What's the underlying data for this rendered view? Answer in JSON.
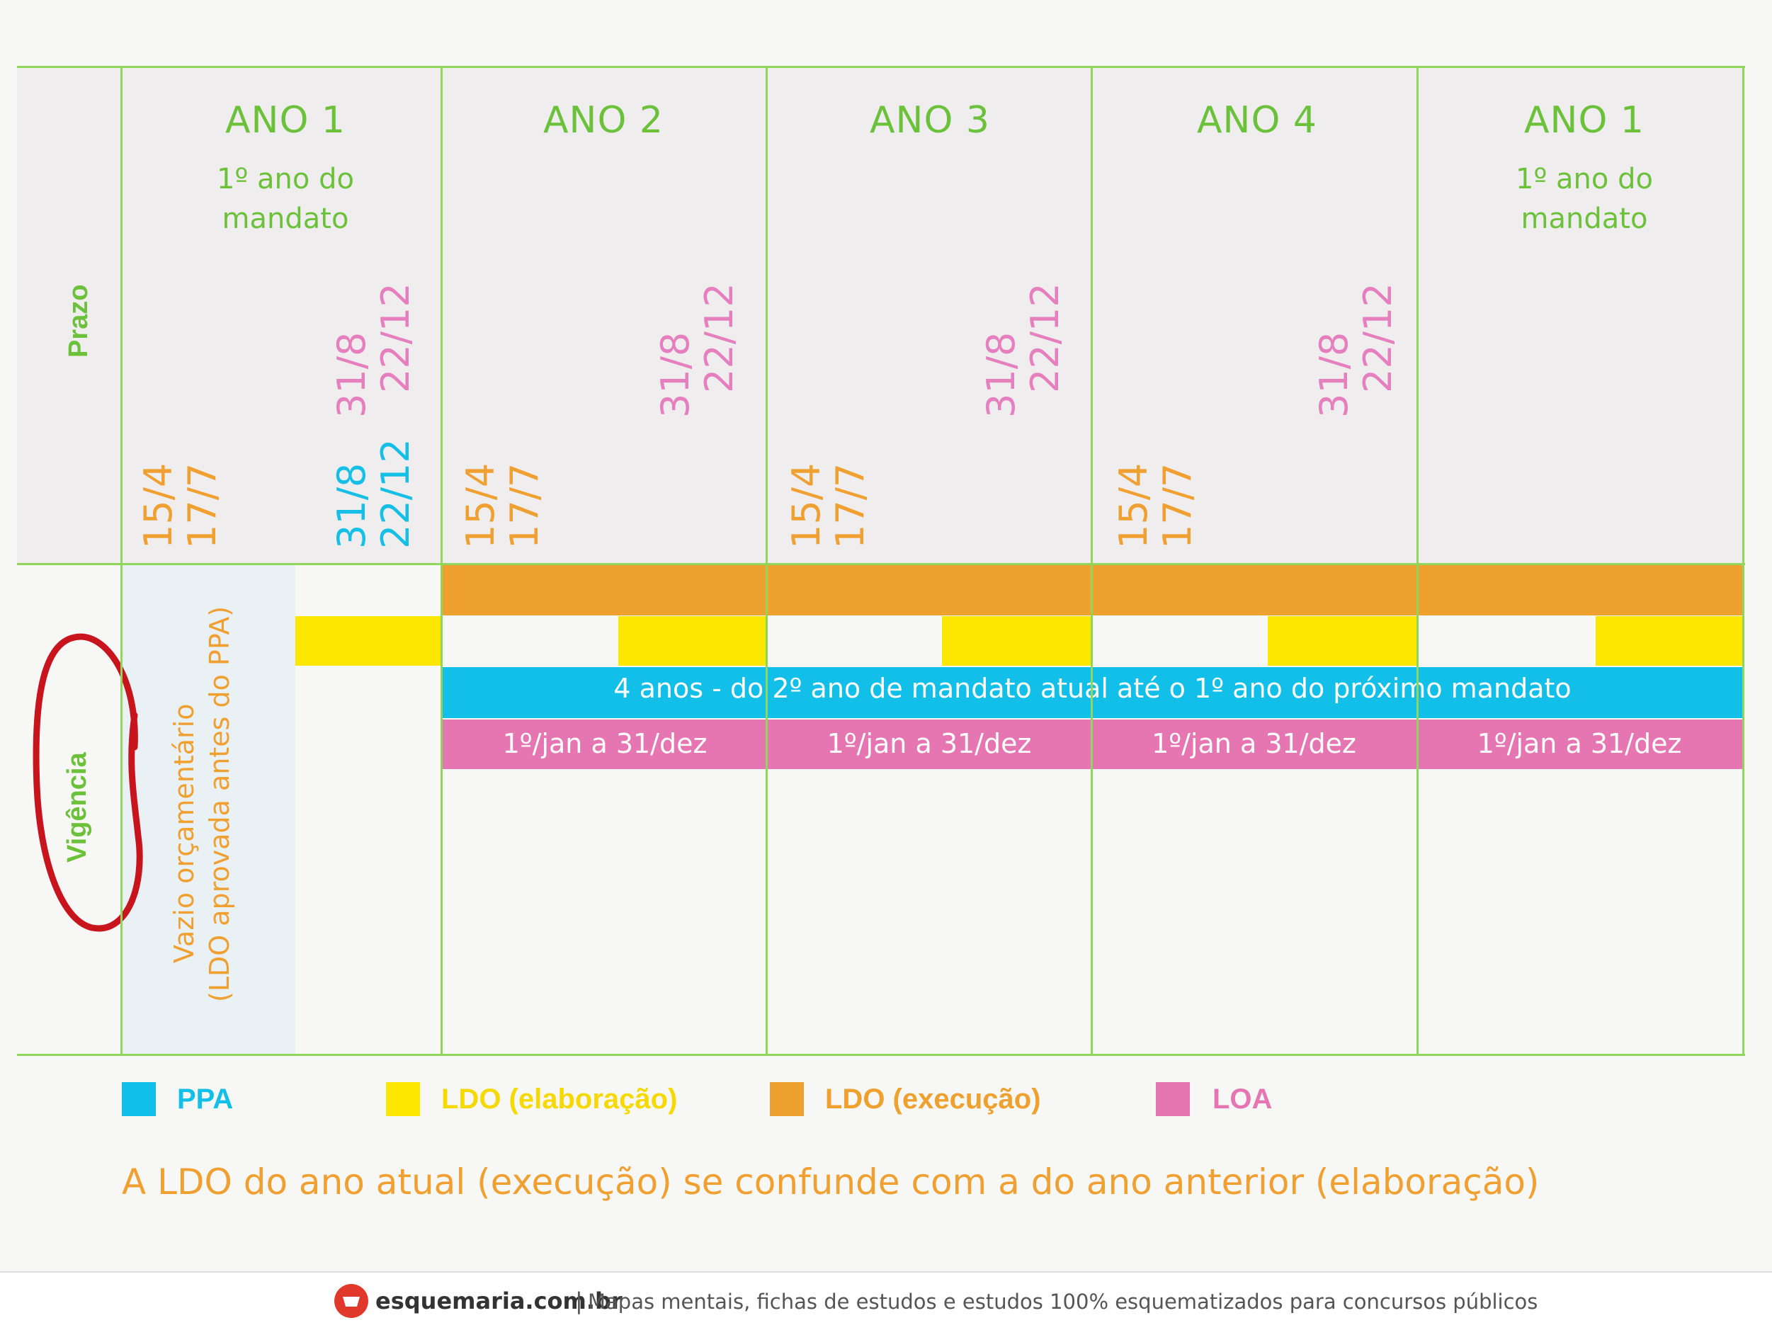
{
  "row_labels": {
    "prazo": "Prazo",
    "vigencia": "Vigência"
  },
  "years": [
    {
      "title": "ANO 1",
      "sub": "1º ano do mandato"
    },
    {
      "title": "ANO 2",
      "sub": ""
    },
    {
      "title": "ANO 3",
      "sub": ""
    },
    {
      "title": "ANO 4",
      "sub": ""
    },
    {
      "title": "ANO 1",
      "sub": "1º ano do mandato"
    }
  ],
  "dates": {
    "ldo_a": "15/4",
    "ldo_b": "17/7",
    "ppa_a": "31/8",
    "ppa_b": "22/12",
    "loa_a": "31/8",
    "loa_b": "22/12"
  },
  "vazio": {
    "line1": "Vazio orçamentário",
    "line2": "(LDO aprovada antes do PPA)"
  },
  "bars": {
    "ppa_text": "4 anos - do 2º ano de mandato atual até o 1º ano do próximo mandato",
    "loa_text": "1º/jan a 31/dez"
  },
  "legend": [
    {
      "label": "PPA",
      "color": "#12bfe8"
    },
    {
      "label": "LDO (elaboração)",
      "color": "#fbe700"
    },
    {
      "label": "LDO (execução)",
      "color": "#eea12f"
    },
    {
      "label": "LOA",
      "color": "#e576b1"
    }
  ],
  "note": "A LDO do ano atual (execução) se confunde com a do ano anterior (elaboração)",
  "footer": {
    "site": "esquemaria.com.br",
    "sep": "|",
    "tagline": "Mapas mentais, fichas de estudos e estudos 100% esquematizados para concursos públicos"
  },
  "colors": {
    "green": "#6cc13a",
    "grid": "#8fd65a",
    "orange": "#eea12f",
    "yellow": "#fbe700",
    "cyan": "#12bfe8",
    "pink": "#e576b1"
  }
}
